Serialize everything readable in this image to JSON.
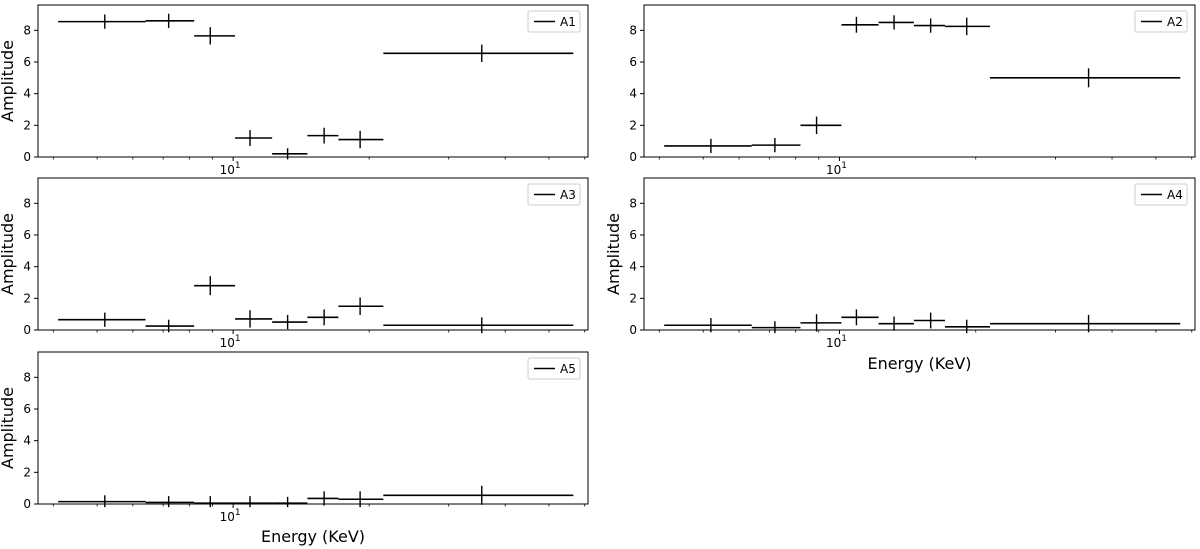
{
  "chart_data": [
    {
      "type": "scatter",
      "legend": "A1",
      "legend_position": "top-right",
      "xlabel": "",
      "ylabel": "Amplitude",
      "xscale": "log",
      "xlim": [
        3.7,
        61
      ],
      "ylim": [
        0,
        9.6
      ],
      "yticks": [
        "0",
        "2",
        "4",
        "6",
        "8"
      ],
      "xticks": [
        {
          "value": 10,
          "base": "10",
          "exp": "1"
        }
      ],
      "points": [
        {
          "x": 5.2,
          "xlo": 4.1,
          "xhi": 6.4,
          "y": 8.55,
          "yerr": 0.45
        },
        {
          "x": 7.2,
          "xlo": 6.4,
          "xhi": 8.2,
          "y": 8.6,
          "yerr": 0.45
        },
        {
          "x": 8.9,
          "xlo": 8.2,
          "xhi": 10.1,
          "y": 7.65,
          "yerr": 0.55
        },
        {
          "x": 10.9,
          "xlo": 10.1,
          "xhi": 12.2,
          "y": 1.2,
          "yerr": 0.5
        },
        {
          "x": 13.2,
          "xlo": 12.2,
          "xhi": 14.6,
          "y": 0.2,
          "yerr": 0.35
        },
        {
          "x": 15.9,
          "xlo": 14.6,
          "xhi": 17.1,
          "y": 1.35,
          "yerr": 0.5
        },
        {
          "x": 19.1,
          "xlo": 17.1,
          "xhi": 21.5,
          "y": 1.1,
          "yerr": 0.55
        },
        {
          "x": 35.5,
          "xlo": 21.5,
          "xhi": 56.6,
          "y": 6.55,
          "yerr": 0.55
        }
      ]
    },
    {
      "type": "scatter",
      "legend": "A2",
      "legend_position": "top-right",
      "xlabel": "",
      "ylabel": "",
      "xscale": "log",
      "xlim": [
        3.7,
        61
      ],
      "ylim": [
        0,
        9.6
      ],
      "yticks": [
        "0",
        "2",
        "4",
        "6",
        "8"
      ],
      "xticks": [
        {
          "value": 10,
          "base": "10",
          "exp": "1"
        }
      ],
      "points": [
        {
          "x": 5.2,
          "xlo": 4.1,
          "xhi": 6.4,
          "y": 0.7,
          "yerr": 0.45
        },
        {
          "x": 7.2,
          "xlo": 6.4,
          "xhi": 8.2,
          "y": 0.75,
          "yerr": 0.45
        },
        {
          "x": 8.9,
          "xlo": 8.2,
          "xhi": 10.1,
          "y": 2.0,
          "yerr": 0.55
        },
        {
          "x": 10.9,
          "xlo": 10.1,
          "xhi": 12.2,
          "y": 8.35,
          "yerr": 0.5
        },
        {
          "x": 13.2,
          "xlo": 12.2,
          "xhi": 14.6,
          "y": 8.5,
          "yerr": 0.45
        },
        {
          "x": 15.9,
          "xlo": 14.6,
          "xhi": 17.1,
          "y": 8.3,
          "yerr": 0.45
        },
        {
          "x": 19.1,
          "xlo": 17.1,
          "xhi": 21.5,
          "y": 8.25,
          "yerr": 0.55
        },
        {
          "x": 35.5,
          "xlo": 21.5,
          "xhi": 56.6,
          "y": 5.0,
          "yerr": 0.6
        }
      ]
    },
    {
      "type": "scatter",
      "legend": "A3",
      "legend_position": "top-right",
      "xlabel": "",
      "ylabel": "Amplitude",
      "xscale": "log",
      "xlim": [
        3.7,
        61
      ],
      "ylim": [
        0,
        9.6
      ],
      "yticks": [
        "0",
        "2",
        "4",
        "6",
        "8"
      ],
      "xticks": [
        {
          "value": 10,
          "base": "10",
          "exp": "1"
        }
      ],
      "points": [
        {
          "x": 5.2,
          "xlo": 4.1,
          "xhi": 6.4,
          "y": 0.65,
          "yerr": 0.45
        },
        {
          "x": 7.2,
          "xlo": 6.4,
          "xhi": 8.2,
          "y": 0.25,
          "yerr": 0.4
        },
        {
          "x": 8.9,
          "xlo": 8.2,
          "xhi": 10.1,
          "y": 2.8,
          "yerr": 0.6
        },
        {
          "x": 10.9,
          "xlo": 10.1,
          "xhi": 12.2,
          "y": 0.7,
          "yerr": 0.55
        },
        {
          "x": 13.2,
          "xlo": 12.2,
          "xhi": 14.6,
          "y": 0.5,
          "yerr": 0.45
        },
        {
          "x": 15.9,
          "xlo": 14.6,
          "xhi": 17.1,
          "y": 0.8,
          "yerr": 0.5
        },
        {
          "x": 19.1,
          "xlo": 17.1,
          "xhi": 21.5,
          "y": 1.5,
          "yerr": 0.55
        },
        {
          "x": 35.5,
          "xlo": 21.5,
          "xhi": 56.6,
          "y": 0.3,
          "yerr": 0.5
        }
      ]
    },
    {
      "type": "scatter",
      "legend": "A4",
      "legend_position": "top-right",
      "xlabel": "Energy (KeV)",
      "ylabel": "Amplitude",
      "xscale": "log",
      "xlim": [
        3.7,
        61
      ],
      "ylim": [
        0,
        9.6
      ],
      "yticks": [
        "0",
        "2",
        "4",
        "6",
        "8"
      ],
      "xticks": [
        {
          "value": 10,
          "base": "10",
          "exp": "1"
        }
      ],
      "points": [
        {
          "x": 5.2,
          "xlo": 4.1,
          "xhi": 6.4,
          "y": 0.3,
          "yerr": 0.45
        },
        {
          "x": 7.2,
          "xlo": 6.4,
          "xhi": 8.2,
          "y": 0.15,
          "yerr": 0.4
        },
        {
          "x": 8.9,
          "xlo": 8.2,
          "xhi": 10.1,
          "y": 0.45,
          "yerr": 0.55
        },
        {
          "x": 10.9,
          "xlo": 10.1,
          "xhi": 12.2,
          "y": 0.8,
          "yerr": 0.5
        },
        {
          "x": 13.2,
          "xlo": 12.2,
          "xhi": 14.6,
          "y": 0.4,
          "yerr": 0.45
        },
        {
          "x": 15.9,
          "xlo": 14.6,
          "xhi": 17.1,
          "y": 0.6,
          "yerr": 0.5
        },
        {
          "x": 19.1,
          "xlo": 17.1,
          "xhi": 21.5,
          "y": 0.2,
          "yerr": 0.45
        },
        {
          "x": 35.5,
          "xlo": 21.5,
          "xhi": 56.6,
          "y": 0.4,
          "yerr": 0.55
        }
      ]
    },
    {
      "type": "scatter",
      "legend": "A5",
      "legend_position": "top-right",
      "xlabel": "Energy (KeV)",
      "ylabel": "Amplitude",
      "xscale": "log",
      "xlim": [
        3.7,
        61
      ],
      "ylim": [
        0,
        9.6
      ],
      "yticks": [
        "0",
        "2",
        "4",
        "6",
        "8"
      ],
      "xticks": [
        {
          "value": 10,
          "base": "10",
          "exp": "1"
        }
      ],
      "points": [
        {
          "x": 5.2,
          "xlo": 4.1,
          "xhi": 6.4,
          "y": 0.15,
          "yerr": 0.4
        },
        {
          "x": 7.2,
          "xlo": 6.4,
          "xhi": 8.2,
          "y": 0.1,
          "yerr": 0.4
        },
        {
          "x": 8.9,
          "xlo": 8.2,
          "xhi": 10.1,
          "y": 0.05,
          "yerr": 0.45
        },
        {
          "x": 10.9,
          "xlo": 10.1,
          "xhi": 12.2,
          "y": 0.05,
          "yerr": 0.45
        },
        {
          "x": 13.2,
          "xlo": 12.2,
          "xhi": 14.6,
          "y": 0.05,
          "yerr": 0.4
        },
        {
          "x": 15.9,
          "xlo": 14.6,
          "xhi": 17.1,
          "y": 0.35,
          "yerr": 0.45
        },
        {
          "x": 19.1,
          "xlo": 17.1,
          "xhi": 21.5,
          "y": 0.3,
          "yerr": 0.5
        },
        {
          "x": 35.5,
          "xlo": 21.5,
          "xhi": 56.6,
          "y": 0.55,
          "yerr": 0.6
        }
      ]
    }
  ]
}
